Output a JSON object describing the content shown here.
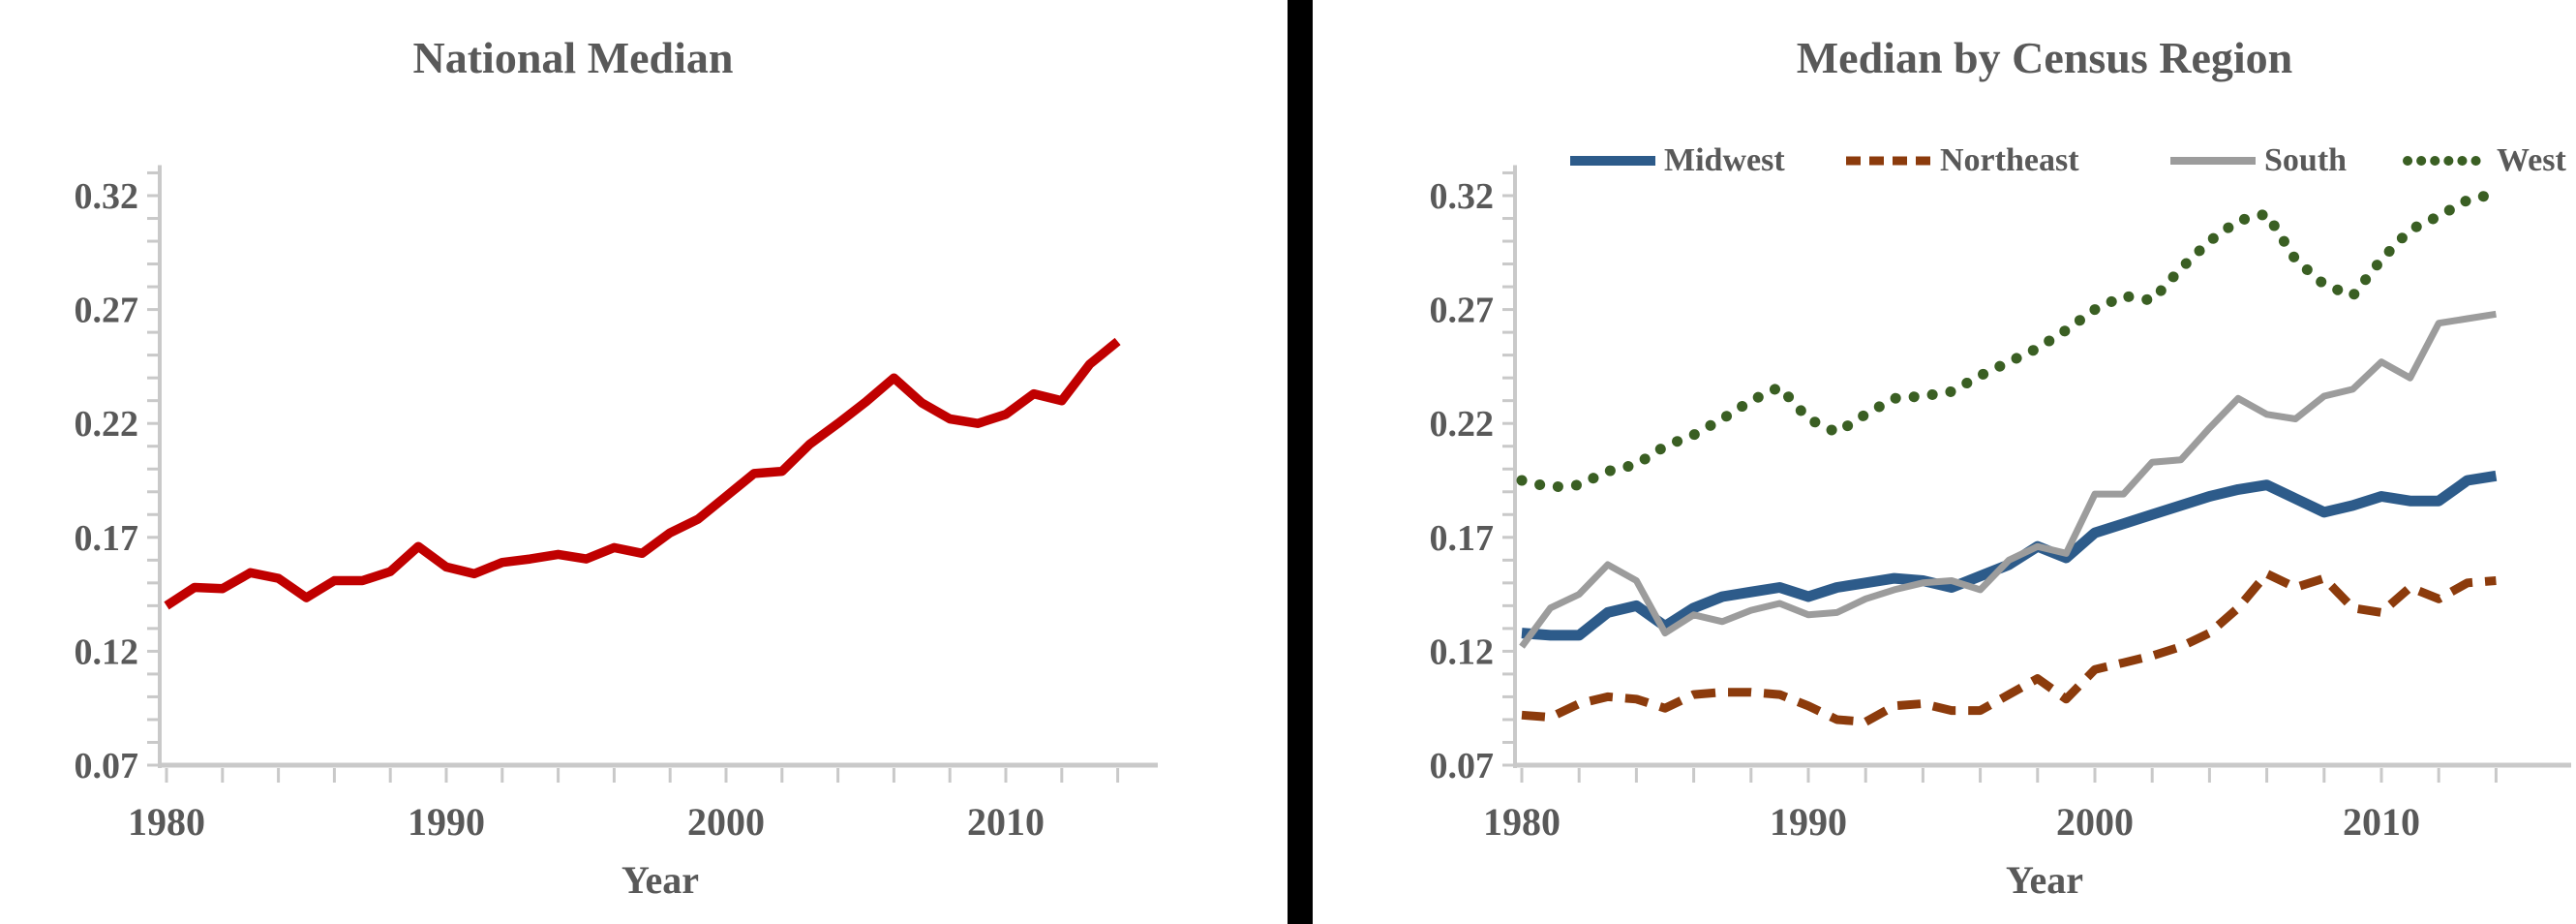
{
  "text_color": "#595959",
  "axis_color": "#C9C9C9",
  "divider_color": "#000000",
  "chart_data": [
    {
      "type": "line",
      "title": "National Median",
      "xlabel": "Year",
      "legend_position": "none",
      "grid": false,
      "years": [
        1980,
        1981,
        1982,
        1983,
        1984,
        1985,
        1986,
        1987,
        1988,
        1989,
        1990,
        1991,
        1992,
        1993,
        1994,
        1995,
        1996,
        1997,
        1998,
        1999,
        2000,
        2001,
        2002,
        2003,
        2004,
        2005,
        2006,
        2007,
        2008,
        2009,
        2010,
        2011,
        2012,
        2013,
        2014
      ],
      "series": [
        {
          "name": "National Median",
          "color": "#C00000",
          "style": "solid",
          "values": [
            0.14,
            0.148,
            0.1475,
            0.1545,
            0.152,
            0.1435,
            0.151,
            0.151,
            0.155,
            0.166,
            0.157,
            0.154,
            0.159,
            0.1605,
            0.1625,
            0.1605,
            0.1655,
            0.163,
            0.172,
            0.178,
            0.188,
            0.198,
            0.199,
            0.211,
            0.22,
            0.2295,
            0.24,
            0.229,
            0.222,
            0.22,
            0.224,
            0.233,
            0.23,
            0.246,
            0.256
          ]
        }
      ],
      "y_axis": {
        "min": 0.07,
        "max": 0.335,
        "tick_min": 0.07,
        "tick_max": 0.33,
        "minor_step": 0.01,
        "labeled_ticks": [
          0.32,
          0.27,
          0.22,
          0.17,
          0.12,
          0.07
        ]
      },
      "x_axis": {
        "minor_step": 2,
        "labeled_ticks": [
          1980,
          1990,
          2000,
          2010
        ]
      }
    },
    {
      "type": "line",
      "title": "Median by Census Region",
      "xlabel": "Year",
      "legend_position": "top",
      "grid": false,
      "years": [
        1980,
        1981,
        1982,
        1983,
        1984,
        1985,
        1986,
        1987,
        1988,
        1989,
        1990,
        1991,
        1992,
        1993,
        1994,
        1995,
        1996,
        1997,
        1998,
        1999,
        2000,
        2001,
        2002,
        2003,
        2004,
        2005,
        2006,
        2007,
        2008,
        2009,
        2010,
        2011,
        2012,
        2013,
        2014
      ],
      "series": [
        {
          "name": "Midwest",
          "color": "#2D5B8A",
          "style": "solid-thick",
          "values": [
            0.128,
            0.127,
            0.127,
            0.137,
            0.14,
            0.131,
            0.139,
            0.144,
            0.146,
            0.148,
            0.144,
            0.148,
            0.15,
            0.152,
            0.151,
            0.148,
            0.153,
            0.158,
            0.166,
            0.161,
            0.172,
            0.176,
            0.18,
            0.184,
            0.188,
            0.191,
            0.193,
            0.187,
            0.181,
            0.184,
            0.188,
            0.186,
            0.186,
            0.195,
            0.197
          ]
        },
        {
          "name": "Northeast",
          "color": "#8C3B0C",
          "style": "dashed",
          "values": [
            0.092,
            0.091,
            0.097,
            0.1,
            0.099,
            0.095,
            0.101,
            0.102,
            0.102,
            0.101,
            0.096,
            0.09,
            0.089,
            0.096,
            0.097,
            0.094,
            0.094,
            0.101,
            0.108,
            0.099,
            0.112,
            0.115,
            0.118,
            0.122,
            0.128,
            0.139,
            0.154,
            0.148,
            0.152,
            0.139,
            0.137,
            0.148,
            0.143,
            0.15,
            0.151
          ]
        },
        {
          "name": "South",
          "color": "#9C9C9C",
          "style": "solid-thin",
          "values": [
            0.122,
            0.139,
            0.145,
            0.158,
            0.151,
            0.128,
            0.136,
            0.133,
            0.138,
            0.141,
            0.136,
            0.137,
            0.143,
            0.147,
            0.15,
            0.151,
            0.147,
            0.16,
            0.166,
            0.163,
            0.189,
            0.189,
            0.203,
            0.204,
            0.218,
            0.231,
            0.224,
            0.222,
            0.232,
            0.235,
            0.247,
            0.24,
            0.264,
            0.266,
            0.268
          ]
        },
        {
          "name": "West",
          "color": "#3A5F23",
          "style": "dotted",
          "values": [
            0.195,
            0.192,
            0.193,
            0.199,
            0.202,
            0.21,
            0.215,
            0.222,
            0.23,
            0.236,
            0.222,
            0.216,
            0.224,
            0.231,
            0.232,
            0.234,
            0.241,
            0.247,
            0.253,
            0.261,
            0.27,
            0.276,
            0.274,
            0.288,
            0.3,
            0.309,
            0.312,
            0.292,
            0.281,
            0.276,
            0.292,
            0.305,
            0.311,
            0.318,
            0.321
          ]
        }
      ],
      "y_axis": {
        "min": 0.07,
        "max": 0.335,
        "tick_min": 0.07,
        "tick_max": 0.33,
        "minor_step": 0.01,
        "labeled_ticks": [
          0.32,
          0.27,
          0.22,
          0.17,
          0.12,
          0.07
        ]
      },
      "x_axis": {
        "minor_step": 2,
        "labeled_ticks": [
          1980,
          1990,
          2000,
          2010
        ]
      }
    }
  ]
}
